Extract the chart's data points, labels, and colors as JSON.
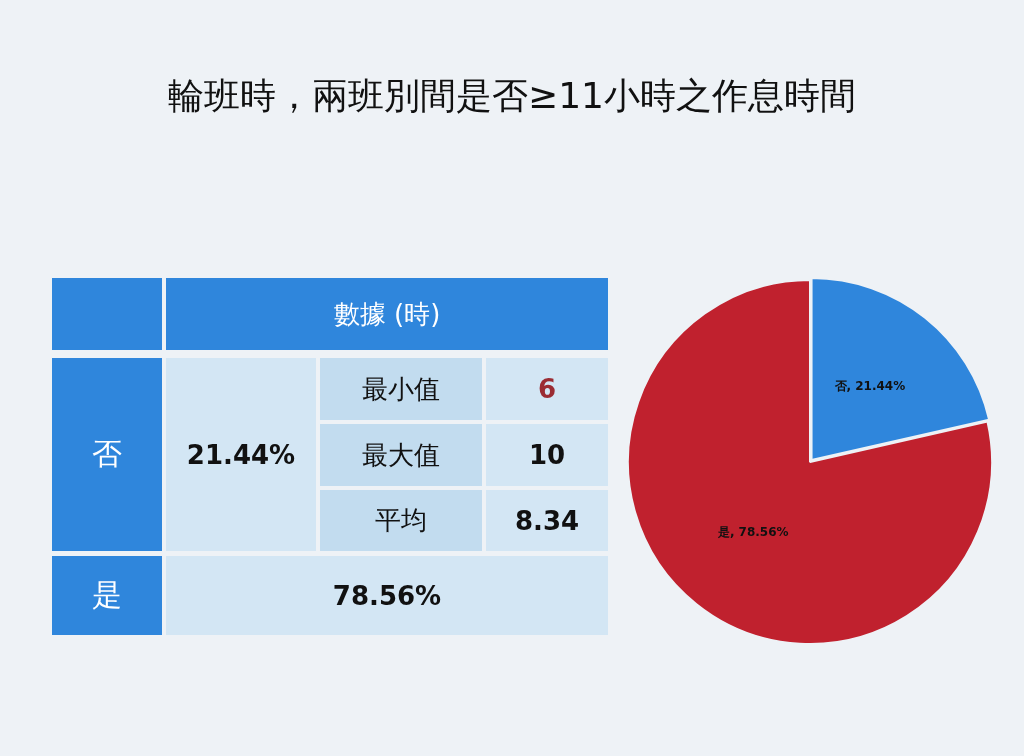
{
  "chart_data": [
    {
      "type": "other",
      "title": "輪班時，兩班別間是否≥11小時之作息時間",
      "annotations": [
        "數據 (時)",
        "否",
        "21.44%",
        "最小值",
        "6",
        "最大值",
        "10",
        "平均",
        "8.34",
        "是",
        "78.56%"
      ]
    },
    {
      "type": "pie",
      "categories": [
        "否",
        "是"
      ],
      "values": [
        21.44,
        78.56
      ],
      "colors": [
        "#2f86dc",
        "#c0212e"
      ],
      "value_labels": [
        "21.44%",
        "78.56%"
      ]
    }
  ]
}
